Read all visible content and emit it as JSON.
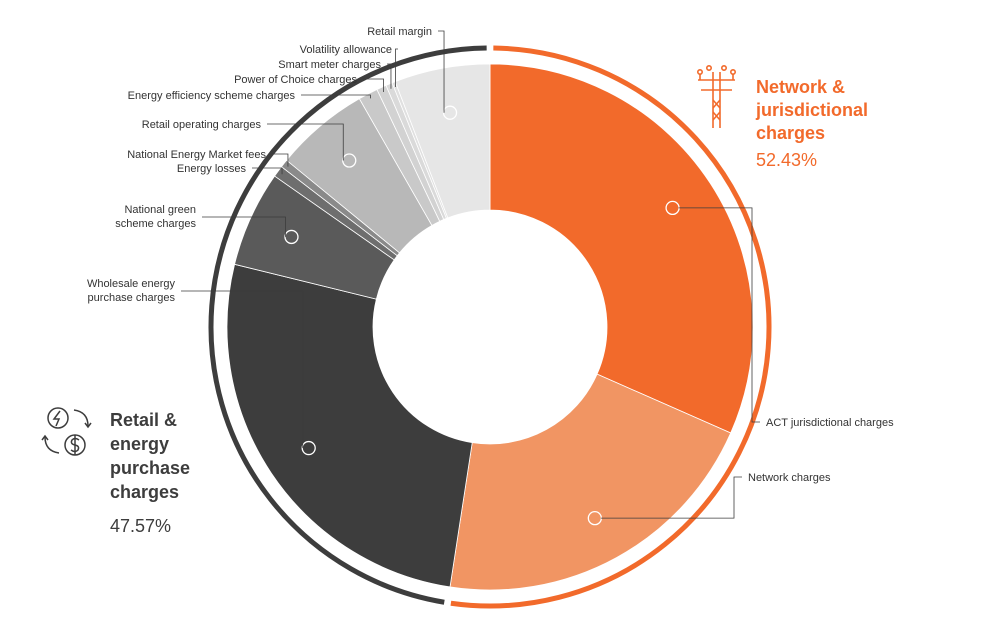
{
  "chart_data": {
    "type": "pie",
    "variant": "donut",
    "slices": [
      {
        "label": "ACT jurisdictional charges",
        "value": 31.6,
        "color": "#f26a2b",
        "group": "network"
      },
      {
        "label": "Network charges",
        "value": 20.83,
        "color": "#f19563",
        "group": "network"
      },
      {
        "label": "Wholesale energy purchase charges",
        "value": 26.4,
        "color": "#3d3d3d",
        "group": "retail"
      },
      {
        "label": "National green scheme charges",
        "value": 5.9,
        "color": "#5a5a5a",
        "group": "retail"
      },
      {
        "label": "Energy losses",
        "value": 0.7,
        "color": "#6e6e6e",
        "group": "retail"
      },
      {
        "label": "National Energy Market fees",
        "value": 0.5,
        "color": "#8a8a8a",
        "group": "retail"
      },
      {
        "label": "Retail operating charges",
        "value": 5.8,
        "color": "#b8b8b8",
        "group": "retail"
      },
      {
        "label": "Energy efficiency scheme charges",
        "value": 1.2,
        "color": "#c9c9c9",
        "group": "retail"
      },
      {
        "label": "Power of Choice charges",
        "value": 0.6,
        "color": "#d2d2d2",
        "group": "retail"
      },
      {
        "label": "Smart meter charges",
        "value": 0.4,
        "color": "#dadada",
        "group": "retail"
      },
      {
        "label": "Volatility allowance",
        "value": 0.2,
        "color": "#e0e0e0",
        "group": "retail"
      },
      {
        "label": "Retail margin",
        "value": 5.87,
        "color": "#e6e6e6",
        "group": "retail"
      }
    ],
    "groups": [
      {
        "id": "network",
        "title": "Network & jurisdictional charges",
        "value": "52.43%",
        "color": "#f26a2b",
        "icon": "power-pole-icon"
      },
      {
        "id": "retail",
        "title": "Retail & energy purchase charges",
        "value": "47.57%",
        "color": "#3d3d3d",
        "icon": "energy-exchange-icon"
      }
    ],
    "legend": "none"
  }
}
